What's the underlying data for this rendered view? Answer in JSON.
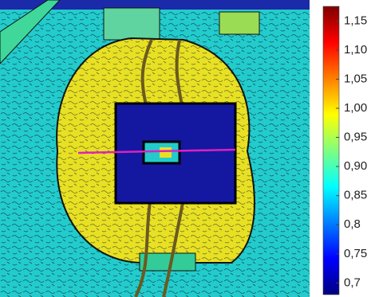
{
  "chart_data": {
    "type": "heatmap",
    "colormap": "jet",
    "clim": [
      0.68,
      1.175
    ],
    "cticks": [
      {
        "value": 1.15,
        "label": "1,15"
      },
      {
        "value": 1.1,
        "label": "1,10"
      },
      {
        "value": 1.05,
        "label": "1,05"
      },
      {
        "value": 1.0,
        "label": "1,00"
      },
      {
        "value": 0.95,
        "label": "0,95"
      },
      {
        "value": 0.9,
        "label": "0,90"
      },
      {
        "value": 0.85,
        "label": "0,85"
      },
      {
        "value": 0.8,
        "label": "0,8"
      },
      {
        "value": 0.75,
        "label": "0,75"
      },
      {
        "value": 0.7,
        "label": "0,7"
      }
    ]
  }
}
